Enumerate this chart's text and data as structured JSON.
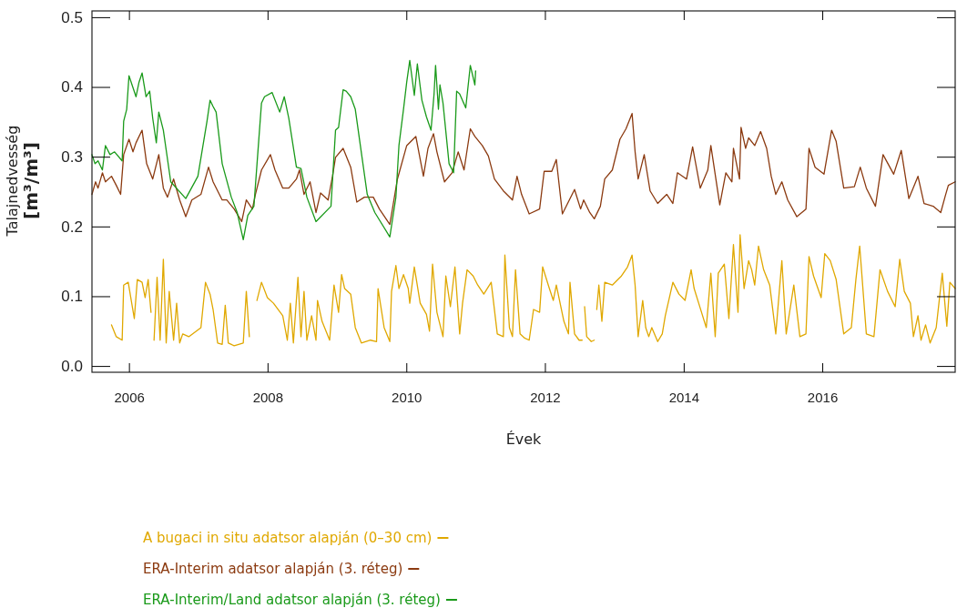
{
  "chart_data": {
    "type": "line",
    "xlabel": "Évek",
    "ylabel": "Talajnedvesség [m³/m³]",
    "xlim": [
      "2005-06-20",
      "2017-12-01"
    ],
    "ylim": [
      -0.009,
      0.509
    ],
    "xticks": [
      {
        "value": "2006-01-01",
        "label": "2006"
      },
      {
        "value": "2008-01-01",
        "label": "2008"
      },
      {
        "value": "2010-01-01",
        "label": "2010"
      },
      {
        "value": "2012-01-01",
        "label": "2012"
      },
      {
        "value": "2014-01-01",
        "label": "2014"
      },
      {
        "value": "2016-01-01",
        "label": "2016"
      }
    ],
    "yticks": [
      {
        "value": 0,
        "label": "0.0"
      },
      {
        "value": 0.1,
        "label": "0.1"
      },
      {
        "value": 0.2,
        "label": "0.2"
      },
      {
        "value": 0.3,
        "label": "0.3"
      },
      {
        "value": 0.4,
        "label": "0.4"
      },
      {
        "value": 0.5,
        "label": "0.5"
      }
    ],
    "grid": false,
    "legend": "bottom",
    "marker": "none",
    "line_style": "solid",
    "series": [
      {
        "name": "A bugaci in situ adatsor alapján (0–30 cm)",
        "color": "#e0a800",
        "x": [
          "2005-10-01",
          "2005-10-26",
          "2005-11-26",
          "2005-12-04",
          "2005-12-28",
          "2006-01-13",
          "2006-01-29",
          "2006-02-14",
          "2006-03-11",
          "2006-03-27",
          "2006-04-12",
          "2006-04-27",
          "2006-05-06",
          "2006-05-13",
          "2006-05-29",
          "2006-06-14",
          "2006-07-01",
          "2006-07-16",
          "2006-08-01",
          "2006-08-24",
          "2006-09-09",
          "2006-09-25",
          "2006-10-11",
          "2006-11-12",
          "2007-01-15",
          "2007-02-08",
          "2007-03-04",
          "2007-03-20",
          "2007-04-13",
          "2007-05-07",
          "2007-05-23",
          "2007-06-08",
          "2007-07-09",
          "2007-08-26",
          "2007-09-11",
          "2007-09-27",
          "2007-10-10",
          "2007-11-06",
          "2007-11-30",
          "2007-12-31",
          "2008-02-01",
          "2008-03-21",
          "2008-04-14",
          "2008-04-30",
          "2008-05-16",
          "2008-06-09",
          "2008-06-25",
          "2008-07-11",
          "2008-07-26",
          "2008-08-20",
          "2008-09-12",
          "2008-09-20",
          "2008-10-14",
          "2008-11-23",
          "2008-12-16",
          "2009-01-09",
          "2009-01-25",
          "2009-02-10",
          "2009-03-14",
          "2009-04-07",
          "2009-05-09",
          "2009-06-26",
          "2009-07-28",
          "2009-08-05",
          "2009-09-06",
          "2009-10-06",
          "2009-10-15",
          "2009-11-07",
          "2009-11-23",
          "2009-12-17",
          "2010-01-11",
          "2010-01-19",
          "2010-02-12",
          "2010-03-15",
          "2010-04-17",
          "2010-05-03",
          "2010-05-19",
          "2010-06-11",
          "2010-07-13",
          "2010-07-28",
          "2010-08-21",
          "2010-09-14",
          "2010-10-09",
          "2010-10-24",
          "2010-11-17",
          "2010-12-19",
          "2011-01-12",
          "2011-02-13",
          "2011-03-24",
          "2011-04-25",
          "2011-05-27",
          "2011-06-04",
          "2011-06-28",
          "2011-07-14",
          "2011-07-30",
          "2011-08-23",
          "2011-09-16",
          "2011-10-10",
          "2011-11-02",
          "2011-12-04",
          "2011-12-20",
          "2012-01-21",
          "2012-02-14",
          "2012-03-01",
          "2012-04-10",
          "2012-05-04",
          "2012-05-12",
          "2012-06-05",
          "2012-06-29",
          "2012-07-15",
          "2012-07-20",
          "2012-07-28",
          "2012-08-08",
          "2012-09-01",
          "2012-09-17",
          "2012-09-25",
          "2012-09-30",
          "2012-10-11",
          "2012-10-27",
          "2012-11-11",
          "2012-12-21",
          "2013-02-07",
          "2013-03-11",
          "2013-04-04",
          "2013-04-20",
          "2013-05-06",
          "2013-05-30",
          "2013-06-15",
          "2013-07-01",
          "2013-07-17",
          "2013-08-17",
          "2013-09-10",
          "2013-09-26",
          "2013-11-05",
          "2013-12-07",
          "2014-01-08",
          "2014-02-09",
          "2014-02-25",
          "2014-03-21",
          "2014-04-30",
          "2014-05-24",
          "2014-06-16",
          "2014-07-02",
          "2014-08-03",
          "2014-08-27",
          "2014-09-20",
          "2014-10-14",
          "2014-10-25",
          "2014-11-15",
          "2014-12-09",
          "2014-12-25",
          "2015-01-10",
          "2015-01-30",
          "2015-02-26",
          "2015-03-30",
          "2015-05-01",
          "2015-06-02",
          "2015-06-25",
          "2015-08-04",
          "2015-09-05",
          "2015-10-07",
          "2015-10-23",
          "2015-11-16",
          "2015-12-26",
          "2016-01-14",
          "2016-02-12",
          "2016-03-14",
          "2016-04-23",
          "2016-06-02",
          "2016-06-26",
          "2016-07-16",
          "2016-08-20",
          "2016-09-29",
          "2016-10-31",
          "2016-12-10",
          "2017-01-19",
          "2017-02-12",
          "2017-03-08",
          "2017-04-09",
          "2017-04-25",
          "2017-05-19",
          "2017-06-04",
          "2017-06-28",
          "2017-07-22",
          "2017-08-23",
          "2017-09-24",
          "2017-10-18",
          "2017-11-03",
          "2017-12-01"
        ],
        "values": [
          0.059,
          0.042,
          0.037,
          0.116,
          0.12,
          0.094,
          0.068,
          0.124,
          0.12,
          0.098,
          0.124,
          0.077,
          null,
          0.037,
          0.127,
          0.037,
          0.153,
          0.033,
          0.107,
          0.037,
          0.09,
          0.033,
          0.046,
          0.042,
          0.055,
          0.12,
          0.103,
          0.081,
          0.033,
          0.031,
          0.087,
          0.033,
          0.029,
          0.033,
          0.107,
          0.042,
          null,
          0.094,
          0.12,
          0.098,
          0.09,
          0.072,
          0.037,
          0.09,
          0.033,
          0.127,
          0.042,
          0.107,
          0.037,
          0.072,
          0.037,
          0.094,
          0.064,
          0.037,
          0.116,
          0.077,
          0.131,
          0.111,
          0.103,
          0.055,
          0.033,
          0.037,
          0.035,
          0.111,
          0.055,
          0.035,
          0.107,
          0.144,
          0.111,
          0.131,
          0.111,
          0.09,
          0.142,
          0.09,
          0.074,
          0.05,
          0.146,
          0.077,
          0.042,
          0.129,
          0.085,
          0.142,
          0.046,
          0.09,
          0.138,
          0.129,
          0.116,
          0.103,
          0.12,
          0.046,
          0.042,
          0.159,
          0.055,
          0.042,
          0.138,
          0.046,
          0.04,
          0.037,
          0.081,
          0.077,
          0.142,
          0.114,
          0.094,
          0.116,
          0.064,
          0.046,
          0.12,
          0.046,
          0.037,
          0.037,
          null,
          0.085,
          0.042,
          0.035,
          0.037,
          null,
          0.081,
          0.116,
          0.064,
          0.12,
          0.116,
          0.129,
          0.142,
          0.159,
          0.116,
          0.042,
          0.094,
          0.055,
          0.042,
          0.055,
          0.035,
          0.046,
          0.072,
          0.12,
          0.103,
          0.094,
          0.138,
          0.111,
          0.09,
          0.055,
          0.133,
          0.042,
          0.133,
          0.146,
          0.068,
          0.174,
          0.077,
          0.188,
          0.111,
          0.151,
          0.138,
          0.116,
          0.172,
          0.138,
          0.116,
          0.046,
          0.151,
          0.046,
          0.116,
          0.042,
          0.046,
          0.157,
          0.129,
          0.098,
          0.161,
          0.151,
          0.124,
          0.046,
          0.055,
          0.124,
          0.172,
          0.046,
          0.042,
          0.138,
          0.107,
          0.085,
          0.153,
          0.107,
          0.09,
          0.042,
          0.072,
          0.037,
          0.059,
          0.033,
          0.055,
          0.133,
          0.057,
          0.12,
          0.111
        ]
      },
      {
        "name": "ERA-Interim adatsor alapján (3. réteg)",
        "color": "#8b3a10",
        "x": [
          "2005-06-20",
          "2005-07-09",
          "2005-07-22",
          "2005-08-14",
          "2005-08-30",
          "2005-10-01",
          "2005-10-26",
          "2005-11-18",
          "2005-12-04",
          "2006-01-01",
          "2006-01-22",
          "2006-02-07",
          "2006-03-11",
          "2006-04-04",
          "2006-05-06",
          "2006-06-07",
          "2006-07-01",
          "2006-07-23",
          "2006-08-24",
          "2006-09-25",
          "2006-10-27",
          "2006-11-28",
          "2007-01-15",
          "2007-02-24",
          "2007-03-20",
          "2007-05-07",
          "2007-05-31",
          "2007-07-09",
          "2007-08-18",
          "2007-09-11",
          "2007-10-13",
          "2007-10-29",
          "2007-11-30",
          "2008-01-16",
          "2008-02-09",
          "2008-03-21",
          "2008-04-22",
          "2008-06-01",
          "2008-06-17",
          "2008-07-11",
          "2008-08-12",
          "2008-09-12",
          "2008-10-06",
          "2008-11-15",
          "2008-12-08",
          "2008-12-24",
          "2009-02-02",
          "2009-03-14",
          "2009-04-15",
          "2009-05-25",
          "2009-07-11",
          "2009-08-12",
          "2009-10-06",
          "2009-11-15",
          "2010-01-03",
          "2010-02-20",
          "2010-04-01",
          "2010-04-25",
          "2010-05-24",
          "2010-06-11",
          "2010-07-21",
          "2010-08-30",
          "2010-10-01",
          "2010-11-01",
          "2010-12-04",
          "2010-12-28",
          "2011-02-05",
          "2011-03-09",
          "2011-04-10",
          "2011-05-27",
          "2011-07-14",
          "2011-08-07",
          "2011-08-31",
          "2011-10-10",
          "2011-12-04",
          "2011-12-28",
          "2012-02-06",
          "2012-03-01",
          "2012-04-02",
          "2012-06-05",
          "2012-07-07",
          "2012-07-23",
          "2012-08-24",
          "2012-09-17",
          "2012-10-19",
          "2012-11-11",
          "2012-12-21",
          "2013-01-30",
          "2013-03-03",
          "2013-04-04",
          "2013-04-20",
          "2013-05-06",
          "2013-06-07",
          "2013-07-08",
          "2013-08-17",
          "2013-10-04",
          "2013-11-05",
          "2013-11-29",
          "2014-01-16",
          "2014-02-17",
          "2014-03-29",
          "2014-05-08",
          "2014-05-24",
          "2014-07-10",
          "2014-08-11",
          "2014-09-12",
          "2014-09-20",
          "2014-10-22",
          "2014-10-30",
          "2014-11-23",
          "2014-12-09",
          "2015-01-10",
          "2015-02-10",
          "2015-03-14",
          "2015-04-07",
          "2015-05-01",
          "2015-06-02",
          "2015-07-03",
          "2015-08-20",
          "2015-10-07",
          "2015-10-23",
          "2015-11-24",
          "2016-01-10",
          "2016-02-19",
          "2016-03-14",
          "2016-04-23",
          "2016-06-18",
          "2016-07-19",
          "2016-08-20",
          "2016-10-07",
          "2016-11-16",
          "2017-01-11",
          "2017-02-20",
          "2017-04-01",
          "2017-05-19",
          "2017-06-20",
          "2017-08-07",
          "2017-09-16",
          "2017-10-10",
          "2017-10-26",
          "2017-12-01"
        ],
        "values": [
          0.246,
          0.264,
          0.255,
          0.277,
          0.264,
          0.272,
          0.259,
          0.246,
          0.303,
          0.325,
          0.307,
          0.32,
          0.338,
          0.29,
          0.268,
          0.303,
          0.255,
          0.242,
          0.268,
          0.238,
          0.214,
          0.238,
          0.246,
          0.285,
          0.264,
          0.238,
          0.238,
          0.225,
          0.207,
          0.238,
          0.225,
          0.246,
          0.281,
          0.303,
          0.281,
          0.255,
          0.255,
          0.268,
          0.281,
          0.246,
          0.264,
          0.22,
          0.248,
          0.238,
          0.272,
          0.299,
          0.312,
          0.285,
          0.235,
          0.242,
          0.242,
          0.225,
          0.203,
          0.268,
          0.316,
          0.329,
          0.272,
          0.312,
          0.333,
          0.307,
          0.264,
          0.277,
          0.307,
          0.281,
          0.34,
          0.329,
          0.316,
          0.301,
          0.268,
          0.251,
          0.238,
          0.272,
          0.246,
          0.218,
          0.225,
          0.279,
          0.279,
          0.296,
          0.218,
          0.253,
          0.225,
          0.238,
          0.22,
          0.211,
          0.229,
          0.268,
          0.281,
          0.325,
          0.34,
          0.362,
          0.307,
          0.268,
          0.303,
          0.251,
          0.233,
          0.246,
          0.233,
          0.277,
          0.268,
          0.314,
          0.255,
          0.281,
          0.316,
          0.231,
          0.277,
          0.264,
          0.312,
          0.268,
          0.342,
          0.312,
          0.327,
          0.316,
          0.336,
          0.312,
          0.272,
          0.246,
          0.264,
          0.238,
          0.214,
          0.225,
          0.312,
          0.285,
          0.275,
          0.338,
          0.322,
          0.255,
          0.257,
          0.285,
          0.255,
          0.229,
          0.303,
          0.275,
          0.309,
          0.24,
          0.272,
          0.233,
          0.229,
          0.22,
          0.244,
          0.259,
          0.264
        ]
      },
      {
        "name": "ERA-Interim/Land adatsor alapján (3. réteg)",
        "color": "#1a9a1a",
        "x": [
          "2005-06-20",
          "2005-07-06",
          "2005-07-22",
          "2005-08-14",
          "2005-08-30",
          "2005-09-23",
          "2005-10-17",
          "2005-11-26",
          "2005-12-04",
          "2005-12-20",
          "2006-01-01",
          "2006-01-22",
          "2006-02-07",
          "2006-02-23",
          "2006-03-11",
          "2006-04-01",
          "2006-04-20",
          "2006-05-06",
          "2006-05-25",
          "2006-06-07",
          "2006-07-01",
          "2006-08-09",
          "2006-10-27",
          "2006-12-30",
          "2007-02-16",
          "2007-03-04",
          "2007-03-20",
          "2007-04-05",
          "2007-05-07",
          "2007-06-24",
          "2007-07-25",
          "2007-08-26",
          "2007-09-19",
          "2007-10-21",
          "2007-11-30",
          "2007-12-16",
          "2008-01-25",
          "2008-03-05",
          "2008-03-29",
          "2008-04-22",
          "2008-06-01",
          "2008-06-25",
          "2008-07-26",
          "2008-09-12",
          "2008-11-30",
          "2008-12-24",
          "2009-01-09",
          "2009-02-02",
          "2009-02-18",
          "2009-03-14",
          "2009-04-07",
          "2009-06-09",
          "2009-07-19",
          "2009-10-06",
          "2009-11-07",
          "2009-11-23",
          "2009-12-17",
          "2010-01-03",
          "2010-01-19",
          "2010-02-12",
          "2010-02-28",
          "2010-03-24",
          "2010-04-17",
          "2010-05-11",
          "2010-05-27",
          "2010-06-04",
          "2010-06-19",
          "2010-06-27",
          "2010-07-13",
          "2010-08-14",
          "2010-09-07",
          "2010-09-23",
          "2010-10-09",
          "2010-11-10",
          "2010-12-04",
          "2010-12-28",
          "2011-01-01"
        ],
        "values": [
          0.303,
          0.29,
          0.294,
          0.281,
          0.316,
          0.303,
          0.307,
          0.294,
          0.351,
          0.368,
          0.416,
          0.399,
          0.386,
          0.407,
          0.42,
          0.386,
          0.394,
          0.355,
          0.32,
          0.364,
          0.338,
          0.264,
          0.24,
          0.272,
          0.351,
          0.381,
          0.372,
          0.364,
          0.29,
          0.242,
          0.22,
          0.181,
          0.216,
          0.229,
          0.377,
          0.386,
          0.392,
          0.364,
          0.386,
          0.355,
          0.285,
          0.283,
          0.242,
          0.207,
          0.229,
          0.338,
          0.342,
          0.396,
          0.394,
          0.386,
          0.368,
          0.246,
          0.22,
          0.185,
          0.242,
          0.316,
          0.368,
          0.407,
          0.438,
          0.388,
          0.433,
          0.381,
          0.357,
          0.338,
          0.39,
          0.431,
          0.368,
          0.403,
          0.377,
          0.29,
          0.277,
          0.394,
          0.39,
          0.37,
          0.431,
          0.403,
          0.423
        ]
      }
    ]
  }
}
